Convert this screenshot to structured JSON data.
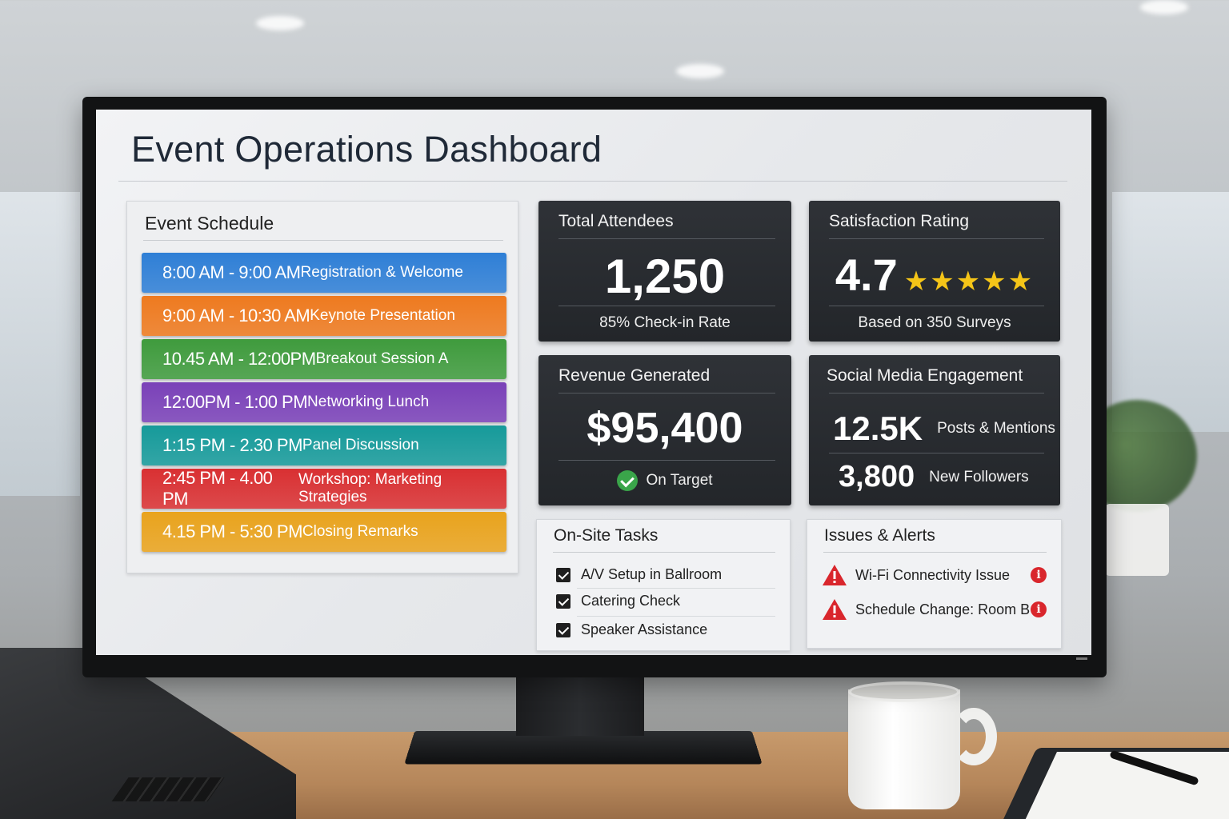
{
  "dashboard": {
    "title": "Event Operations Dashboard"
  },
  "schedule": {
    "heading": "Event Schedule",
    "items": [
      {
        "time": "8:00 AM - 9:00 AM",
        "name": "Registration & Welcome",
        "color": "#2f7fd6"
      },
      {
        "time": "9:00 AM - 10:30 AM",
        "name": "Keynote Presentation",
        "color": "#ee7a1f"
      },
      {
        "time": "10.45 AM - 12:00PM",
        "name": "Breakout Session A",
        "color": "#3f9b3d"
      },
      {
        "time": "12:00PM - 1:00 PM",
        "name": "Networking Lunch",
        "color": "#7a41b8"
      },
      {
        "time": "1:15 PM - 2.30 PM",
        "name": "Panel Discussion",
        "color": "#169a9a"
      },
      {
        "time": "2:45 PM - 4.00 PM",
        "name": "Workshop: Marketing Strategies",
        "color": "#d93032"
      },
      {
        "time": "4.15 PM - 5:30 PM",
        "name": "Closing Remarks",
        "color": "#e9a31d"
      }
    ]
  },
  "attendees": {
    "title": "Total Attendees",
    "value": "1,250",
    "subtext": "85% Check-in Rate"
  },
  "satisfaction": {
    "title": "Satisfaction Rating",
    "value": "4.7",
    "stars": "★★★★★",
    "star_rating": 5,
    "subtext": "Based on 350 Surveys"
  },
  "revenue": {
    "title": "Revenue Generated",
    "value": "$95,400",
    "status": "On Target",
    "status_icon": "check-circle-icon"
  },
  "social": {
    "title": "Social Media Engagement",
    "rows": [
      {
        "value": "12.5K",
        "label": "Posts & Mentions"
      },
      {
        "value": "3,800",
        "label": "New Followers"
      }
    ]
  },
  "tasks": {
    "heading": "On-Site Tasks",
    "items": [
      {
        "label": "A/V Setup in Ballroom",
        "checked": true
      },
      {
        "label": "Catering Check",
        "checked": true
      },
      {
        "label": "Speaker Assistance",
        "checked": true
      }
    ]
  },
  "alerts": {
    "heading": "Issues & Alerts",
    "items": [
      {
        "label": "Wi-Fi Connectivity Issue",
        "icon": "warning-icon",
        "info_icon": "info-icon"
      },
      {
        "label": "Schedule Change: Room B",
        "icon": "warning-icon",
        "info_icon": "info-icon"
      }
    ],
    "color": "#d9262c"
  }
}
